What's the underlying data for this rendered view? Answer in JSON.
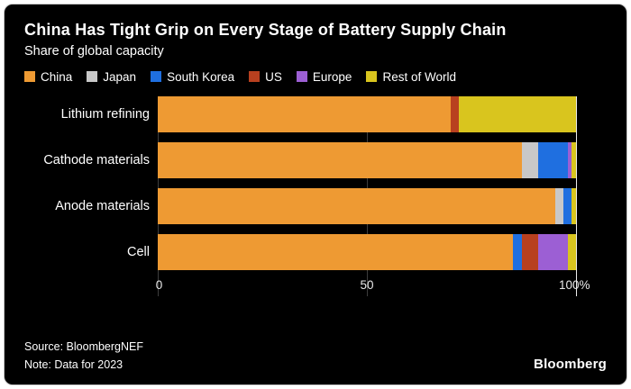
{
  "header": {
    "title": "China Has Tight Grip on Every Stage of Battery Supply Chain",
    "subtitle": "Share of global capacity"
  },
  "legend": [
    {
      "label": "China",
      "color": "#EE9A33"
    },
    {
      "label": "Japan",
      "color": "#C8C8C8"
    },
    {
      "label": "South Korea",
      "color": "#1F6FE0"
    },
    {
      "label": "US",
      "color": "#B8401F"
    },
    {
      "label": "Europe",
      "color": "#9C5FD4"
    },
    {
      "label": "Rest of World",
      "color": "#D9C51E"
    }
  ],
  "chart_data": {
    "type": "bar",
    "orientation": "horizontal",
    "stacked": true,
    "title": "China Has Tight Grip on Every Stage of Battery Supply Chain",
    "subtitle": "Share of global capacity",
    "categories": [
      "Lithium refining",
      "Cathode materials",
      "Anode materials",
      "Cell"
    ],
    "series": [
      {
        "name": "China",
        "color": "#EE9A33",
        "values": [
          70,
          87,
          95,
          85
        ]
      },
      {
        "name": "Japan",
        "color": "#C8C8C8",
        "values": [
          0,
          4,
          2,
          0
        ]
      },
      {
        "name": "South Korea",
        "color": "#1F6FE0",
        "values": [
          0,
          7,
          2,
          2
        ]
      },
      {
        "name": "US",
        "color": "#B8401F",
        "values": [
          2,
          0,
          0,
          4
        ]
      },
      {
        "name": "Europe",
        "color": "#9C5FD4",
        "values": [
          0,
          1,
          0,
          7
        ]
      },
      {
        "name": "Rest of World",
        "color": "#D9C51E",
        "values": [
          28,
          1,
          1,
          2
        ]
      }
    ],
    "xlim": [
      0,
      100
    ],
    "xticks": [
      "0",
      "50",
      "100%"
    ],
    "xlabel": "",
    "ylabel": "",
    "legend_position": "top",
    "gridlines": [
      0,
      50,
      100
    ]
  },
  "footer": {
    "source": "Source: BloombergNEF",
    "note": "Note: Data for 2023",
    "brand": "Bloomberg"
  }
}
